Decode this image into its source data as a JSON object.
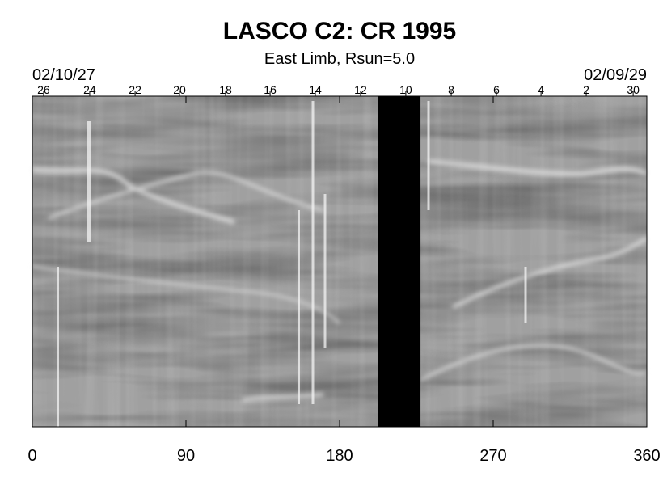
{
  "chart_data": {
    "type": "synoptic-map",
    "title": "LASCO C2: CR 1995",
    "subtitle": "East Limb, Rsun=5.0",
    "start_label": "02/10/27",
    "end_label": "02/09/29",
    "xlim": [
      0,
      360
    ],
    "xticks": [
      0,
      90,
      180,
      270,
      360
    ],
    "day_ticks": [
      {
        "value": 6.6,
        "label": "26"
      },
      {
        "value": 33.6,
        "label": "24"
      },
      {
        "value": 60.2,
        "label": "22"
      },
      {
        "value": 86.2,
        "label": "20"
      },
      {
        "value": 113.2,
        "label": "18"
      },
      {
        "value": 139.3,
        "label": "16"
      },
      {
        "value": 165.8,
        "label": "14"
      },
      {
        "value": 192.3,
        "label": "12"
      },
      {
        "value": 218.8,
        "label": "10"
      },
      {
        "value": 245.4,
        "label": "8"
      },
      {
        "value": 271.9,
        "label": "6"
      },
      {
        "value": 298,
        "label": "4"
      },
      {
        "value": 324.5,
        "label": "2"
      },
      {
        "value": 352,
        "label": "30"
      }
    ],
    "data_gap": [
      202.3,
      227.4
    ],
    "gap_color": "#000000"
  }
}
